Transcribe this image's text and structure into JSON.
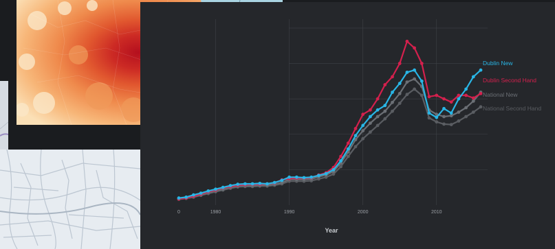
{
  "colors": {
    "page_bg": "#1a1c1f",
    "chart_bg": "#25272b",
    "grid": "#3f4247",
    "map_sea": "#a9d3e1",
    "map_land_light": "#fbe0b6",
    "map_land_dark": "#b40f1e"
  },
  "chart_data": {
    "type": "line",
    "xlabel": "Year",
    "ylabel": "",
    "title": "",
    "xlim": [
      1975,
      2016
    ],
    "ylim": [
      0,
      420000
    ],
    "x_ticks": [
      "0",
      "1980",
      "1990",
      "2000",
      "2010"
    ],
    "grid": true,
    "legend_placement": "right-end-of-lines",
    "x": [
      1975,
      1976,
      1977,
      1978,
      1979,
      1980,
      1981,
      1982,
      1983,
      1984,
      1985,
      1986,
      1987,
      1988,
      1989,
      1990,
      1991,
      1992,
      1993,
      1994,
      1995,
      1996,
      1997,
      1998,
      1999,
      2000,
      2001,
      2002,
      2003,
      2004,
      2005,
      2006,
      2007,
      2008,
      2009,
      2010,
      2011,
      2012,
      2013,
      2014,
      2015,
      2016
    ],
    "series": [
      {
        "name": "Dublin New",
        "color": "#29b6e6",
        "values": [
          16000,
          18000,
          23000,
          27000,
          32000,
          36000,
          40000,
          44000,
          47000,
          48000,
          48000,
          49000,
          48000,
          51000,
          56000,
          63000,
          63000,
          62000,
          63000,
          67000,
          71000,
          80000,
          100000,
          127000,
          157000,
          180000,
          200000,
          215000,
          225000,
          255000,
          275000,
          300000,
          305000,
          280000,
          208000,
          198000,
          218000,
          208000,
          240000,
          262000,
          290000,
          305000
        ]
      },
      {
        "name": "Dublin Second Hand",
        "color": "#d4204d",
        "values": [
          14000,
          16000,
          20000,
          25000,
          30000,
          34000,
          39000,
          42000,
          45000,
          46000,
          47000,
          47000,
          48000,
          50000,
          57000,
          60000,
          61000,
          61000,
          62000,
          68000,
          73000,
          85000,
          110000,
          140000,
          173000,
          205000,
          215000,
          240000,
          272000,
          290000,
          320000,
          370000,
          355000,
          320000,
          245000,
          248000,
          240000,
          233000,
          248000,
          248000,
          242000,
          252000
        ]
      },
      {
        "name": "National New",
        "color": "#6b6f75",
        "values": [
          14000,
          16000,
          19000,
          23000,
          28000,
          32000,
          36000,
          40000,
          43000,
          44000,
          44000,
          45000,
          45000,
          47000,
          51000,
          58000,
          58000,
          58000,
          59000,
          64000,
          68000,
          76000,
          95000,
          120000,
          148000,
          168000,
          185000,
          200000,
          212000,
          232000,
          252000,
          278000,
          285000,
          268000,
          215000,
          205000,
          200000,
          202000,
          210000,
          220000,
          235000,
          255000
        ]
      },
      {
        "name": "National Second Hand",
        "color": "#5a5d62",
        "values": [
          13000,
          15000,
          18000,
          22000,
          26000,
          30000,
          34000,
          38000,
          41000,
          42000,
          42000,
          43000,
          43000,
          45000,
          48000,
          54000,
          54000,
          54000,
          55000,
          59000,
          63000,
          70000,
          87000,
          110000,
          132000,
          150000,
          165000,
          180000,
          195000,
          212000,
          230000,
          250000,
          262000,
          248000,
          197000,
          188000,
          183000,
          182000,
          190000,
          200000,
          210000,
          222000
        ]
      }
    ]
  }
}
